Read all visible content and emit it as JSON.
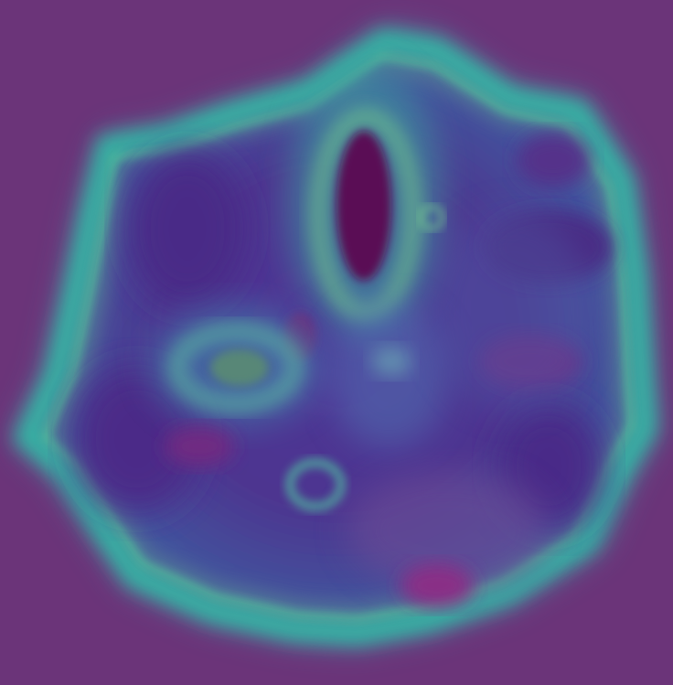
{
  "scene": {
    "subject": "head-scan-heatmap",
    "palette": {
      "background": "#6b3479",
      "ring_outer": "#2fb6a6",
      "ring_inner": "#1fc2a2",
      "highlight": "#79d68c",
      "mid_blue": "#4f6fb0",
      "deep_purple": "#4b2f8a",
      "dark_void": "#5a0a55",
      "magenta": "#8a2f86"
    }
  }
}
